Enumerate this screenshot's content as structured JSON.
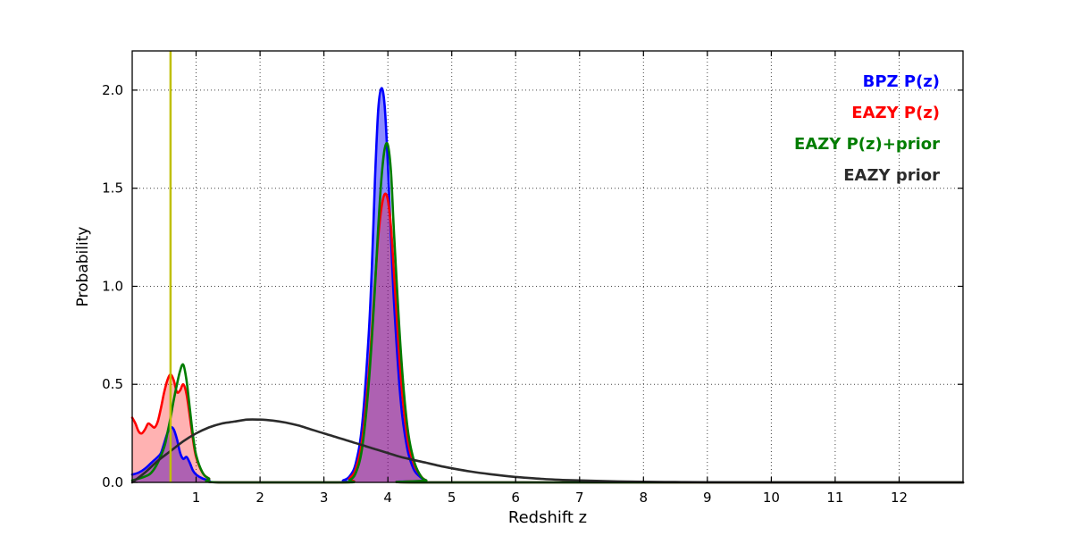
{
  "chart_data": {
    "type": "line",
    "title": "",
    "xlabel": "Redshift z",
    "ylabel": "Probability",
    "xlim": [
      0,
      13
    ],
    "ylim": [
      0,
      2.2
    ],
    "xticks": [
      1,
      2,
      3,
      4,
      5,
      6,
      7,
      8,
      9,
      10,
      11,
      12
    ],
    "yticks": [
      0.0,
      0.5,
      1.0,
      1.5,
      2.0
    ],
    "grid": true,
    "grid_style": "dotted",
    "legend_position": "upper right",
    "frame_color": "#000000",
    "vline": {
      "x": 0.6,
      "color": "#bfbf00"
    },
    "series": [
      {
        "name": "BPZ P(z)",
        "color": "#0000ff",
        "fill": true,
        "fill_opacity": 0.45,
        "points": [
          [
            0,
            0.04
          ],
          [
            0.1,
            0.05
          ],
          [
            0.2,
            0.07
          ],
          [
            0.3,
            0.1
          ],
          [
            0.4,
            0.13
          ],
          [
            0.45,
            0.15
          ],
          [
            0.5,
            0.2
          ],
          [
            0.55,
            0.25
          ],
          [
            0.6,
            0.28
          ],
          [
            0.65,
            0.27
          ],
          [
            0.7,
            0.22
          ],
          [
            0.75,
            0.15
          ],
          [
            0.8,
            0.12
          ],
          [
            0.85,
            0.13
          ],
          [
            0.9,
            0.1
          ],
          [
            0.95,
            0.06
          ],
          [
            1.0,
            0.04
          ],
          [
            1.1,
            0.02
          ],
          [
            1.2,
            0.01
          ],
          [
            1.4,
            0.0
          ],
          [
            3.2,
            0.0
          ],
          [
            3.3,
            0.01
          ],
          [
            3.4,
            0.03
          ],
          [
            3.5,
            0.1
          ],
          [
            3.6,
            0.3
          ],
          [
            3.7,
            0.75
          ],
          [
            3.75,
            1.1
          ],
          [
            3.8,
            1.55
          ],
          [
            3.85,
            1.9
          ],
          [
            3.9,
            2.01
          ],
          [
            3.95,
            1.92
          ],
          [
            4.0,
            1.62
          ],
          [
            4.05,
            1.25
          ],
          [
            4.1,
            0.9
          ],
          [
            4.2,
            0.42
          ],
          [
            4.3,
            0.18
          ],
          [
            4.4,
            0.07
          ],
          [
            4.5,
            0.03
          ],
          [
            4.6,
            0.01
          ],
          [
            4.8,
            0.0
          ],
          [
            13,
            0.0
          ]
        ]
      },
      {
        "name": "EAZY P(z)",
        "color": "#ff0000",
        "fill": true,
        "fill_opacity": 0.3,
        "points": [
          [
            0,
            0.33
          ],
          [
            0.05,
            0.3
          ],
          [
            0.1,
            0.26
          ],
          [
            0.15,
            0.25
          ],
          [
            0.2,
            0.27
          ],
          [
            0.25,
            0.3
          ],
          [
            0.3,
            0.29
          ],
          [
            0.35,
            0.28
          ],
          [
            0.4,
            0.31
          ],
          [
            0.45,
            0.38
          ],
          [
            0.5,
            0.46
          ],
          [
            0.55,
            0.52
          ],
          [
            0.6,
            0.55
          ],
          [
            0.65,
            0.52
          ],
          [
            0.7,
            0.46
          ],
          [
            0.75,
            0.47
          ],
          [
            0.8,
            0.5
          ],
          [
            0.85,
            0.45
          ],
          [
            0.9,
            0.34
          ],
          [
            0.95,
            0.22
          ],
          [
            1.0,
            0.13
          ],
          [
            1.1,
            0.05
          ],
          [
            1.2,
            0.02
          ],
          [
            1.35,
            0.0
          ],
          [
            3.3,
            0.0
          ],
          [
            3.4,
            0.02
          ],
          [
            3.5,
            0.07
          ],
          [
            3.6,
            0.22
          ],
          [
            3.7,
            0.55
          ],
          [
            3.8,
            1.02
          ],
          [
            3.85,
            1.25
          ],
          [
            3.9,
            1.4
          ],
          [
            3.95,
            1.47
          ],
          [
            4.0,
            1.44
          ],
          [
            4.05,
            1.3
          ],
          [
            4.1,
            1.05
          ],
          [
            4.2,
            0.55
          ],
          [
            4.3,
            0.24
          ],
          [
            4.4,
            0.1
          ],
          [
            4.5,
            0.04
          ],
          [
            4.6,
            0.01
          ],
          [
            4.8,
            0.0
          ],
          [
            13,
            0.0
          ]
        ]
      },
      {
        "name": "EAZY P(z)+prior",
        "color": "#007d00",
        "fill": false,
        "fill_opacity": 0,
        "points": [
          [
            0,
            0.01
          ],
          [
            0.2,
            0.03
          ],
          [
            0.3,
            0.05
          ],
          [
            0.4,
            0.1
          ],
          [
            0.5,
            0.18
          ],
          [
            0.55,
            0.25
          ],
          [
            0.6,
            0.33
          ],
          [
            0.65,
            0.42
          ],
          [
            0.7,
            0.5
          ],
          [
            0.75,
            0.57
          ],
          [
            0.8,
            0.6
          ],
          [
            0.85,
            0.52
          ],
          [
            0.9,
            0.38
          ],
          [
            0.95,
            0.24
          ],
          [
            1.0,
            0.14
          ],
          [
            1.1,
            0.05
          ],
          [
            1.2,
            0.02
          ],
          [
            1.35,
            0.0
          ],
          [
            3.3,
            0.0
          ],
          [
            3.4,
            0.01
          ],
          [
            3.5,
            0.05
          ],
          [
            3.6,
            0.18
          ],
          [
            3.7,
            0.5
          ],
          [
            3.8,
            1.0
          ],
          [
            3.85,
            1.3
          ],
          [
            3.9,
            1.55
          ],
          [
            3.95,
            1.7
          ],
          [
            4.0,
            1.72
          ],
          [
            4.05,
            1.58
          ],
          [
            4.1,
            1.25
          ],
          [
            4.2,
            0.68
          ],
          [
            4.3,
            0.3
          ],
          [
            4.4,
            0.12
          ],
          [
            4.5,
            0.04
          ],
          [
            4.6,
            0.01
          ],
          [
            4.8,
            0.0
          ],
          [
            13,
            0.0
          ]
        ]
      },
      {
        "name": "EAZY prior",
        "color": "#2b2b2b",
        "fill": false,
        "fill_opacity": 0,
        "points": [
          [
            0,
            0.0
          ],
          [
            0.2,
            0.05
          ],
          [
            0.4,
            0.11
          ],
          [
            0.6,
            0.16
          ],
          [
            0.8,
            0.21
          ],
          [
            1.0,
            0.25
          ],
          [
            1.2,
            0.28
          ],
          [
            1.4,
            0.3
          ],
          [
            1.6,
            0.31
          ],
          [
            1.8,
            0.32
          ],
          [
            2.0,
            0.32
          ],
          [
            2.2,
            0.315
          ],
          [
            2.4,
            0.305
          ],
          [
            2.6,
            0.29
          ],
          [
            2.8,
            0.27
          ],
          [
            3.0,
            0.25
          ],
          [
            3.2,
            0.23
          ],
          [
            3.4,
            0.21
          ],
          [
            3.6,
            0.19
          ],
          [
            3.8,
            0.17
          ],
          [
            4.0,
            0.15
          ],
          [
            4.2,
            0.13
          ],
          [
            4.4,
            0.115
          ],
          [
            4.6,
            0.1
          ],
          [
            4.8,
            0.085
          ],
          [
            5.0,
            0.072
          ],
          [
            5.3,
            0.055
          ],
          [
            5.6,
            0.042
          ],
          [
            6.0,
            0.028
          ],
          [
            6.4,
            0.018
          ],
          [
            6.8,
            0.012
          ],
          [
            7.2,
            0.008
          ],
          [
            7.6,
            0.005
          ],
          [
            8.0,
            0.003
          ],
          [
            8.5,
            0.002
          ],
          [
            9.0,
            0.001
          ],
          [
            10.0,
            0.0005
          ],
          [
            11.0,
            0.0002
          ],
          [
            13,
            0.0
          ]
        ]
      }
    ]
  }
}
